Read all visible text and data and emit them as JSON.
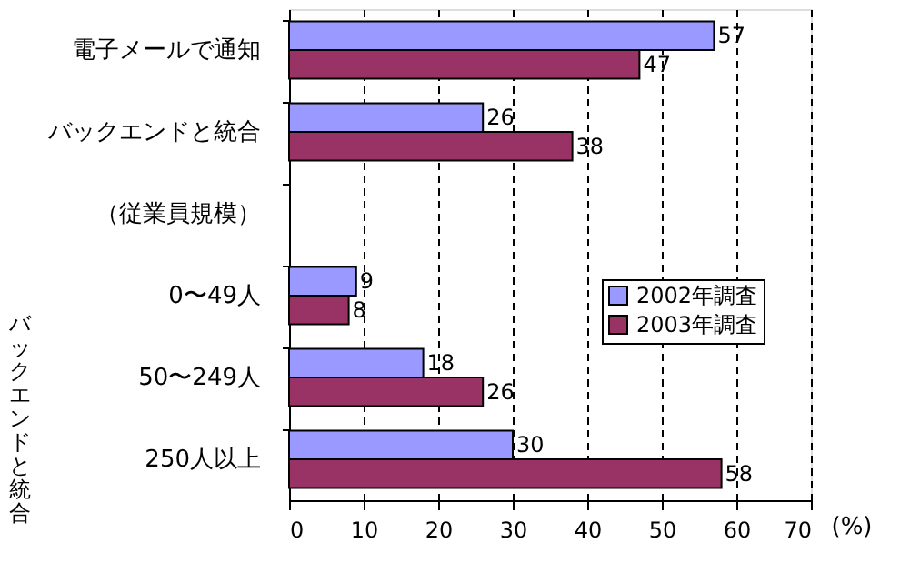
{
  "chart_data": {
    "type": "bar",
    "orientation": "horizontal",
    "categories": [
      "電子メールで通知",
      "バックエンドと統合",
      "（従業員規模）",
      "0〜49人",
      "50〜249人",
      "250人以上"
    ],
    "series": [
      {
        "name": "2002年調査",
        "color": "#9999ff",
        "values": [
          57,
          26,
          null,
          9,
          18,
          30
        ]
      },
      {
        "name": "2003年調査",
        "color": "#993366",
        "values": [
          47,
          38,
          null,
          8,
          26,
          58
        ]
      }
    ],
    "xlim": [
      0,
      70
    ],
    "xticks": [
      0,
      10,
      20,
      30,
      40,
      50,
      60,
      70
    ],
    "xlabel": "(%)",
    "grid": "x",
    "legend": "right",
    "data_labels": true,
    "annotations": [
      "バックエンドと統合"
    ]
  }
}
